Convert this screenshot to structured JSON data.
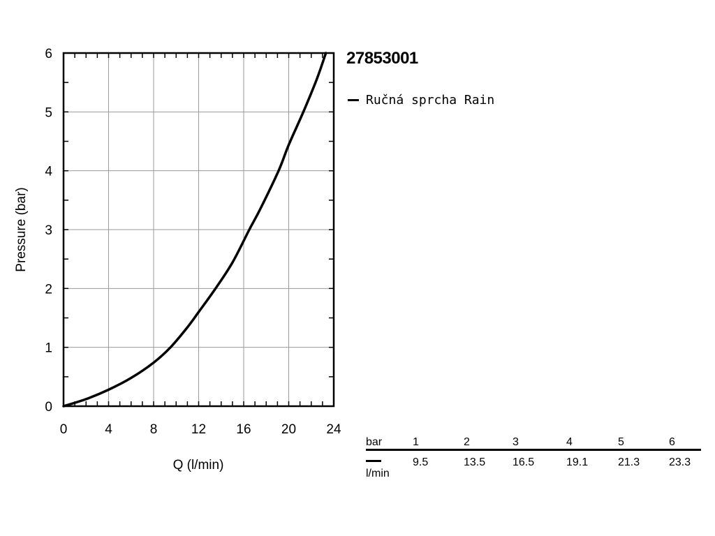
{
  "chart_data": {
    "type": "line",
    "title": "27853001",
    "xlabel": "Q (l/min)",
    "ylabel": "Pressure (bar)",
    "xlim": [
      0,
      24
    ],
    "ylim": [
      0,
      6
    ],
    "x_ticks": [
      "0",
      "4",
      "8",
      "12",
      "16",
      "20",
      "24"
    ],
    "y_ticks": [
      "0",
      "1",
      "2",
      "3",
      "4",
      "5",
      "6"
    ],
    "grid": true,
    "legend_position": "top-right",
    "series": [
      {
        "name": "Ručná sprcha Rain",
        "color": "#000000",
        "x": [
          0,
          2,
          4,
          6,
          8,
          9.5,
          11,
          12,
          13.5,
          15,
          16.5,
          17.5,
          19.1,
          20,
          21.3,
          22.5,
          23.3
        ],
        "y": [
          0,
          0.12,
          0.28,
          0.48,
          0.74,
          1.0,
          1.34,
          1.6,
          2.0,
          2.44,
          3.0,
          3.36,
          4.0,
          4.44,
          5.0,
          5.56,
          6.0
        ]
      }
    ]
  },
  "table": {
    "header_label": "bar",
    "unit_label": "l/min",
    "bar_values": [
      "1",
      "2",
      "3",
      "4",
      "5",
      "6"
    ],
    "flow_values": [
      "9.5",
      "13.5",
      "16.5",
      "19.1",
      "21.3",
      "23.3"
    ]
  }
}
